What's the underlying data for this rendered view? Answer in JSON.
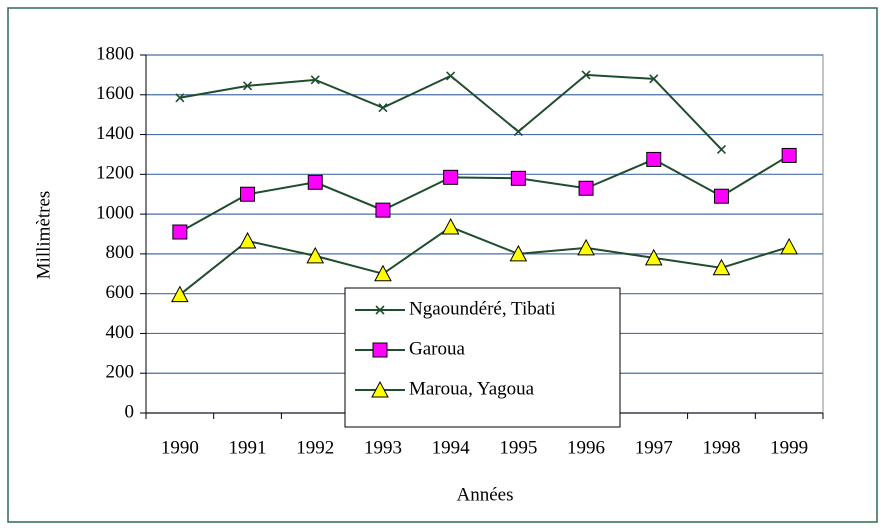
{
  "chart_data": {
    "type": "line",
    "x_label": "Années",
    "y_label": "Millimètres",
    "categories": [
      "1990",
      "1991",
      "1992",
      "1993",
      "1994",
      "1995",
      "1996",
      "1997",
      "1998",
      "1999"
    ],
    "series": [
      {
        "name": "Ngaoundéré, Tibati",
        "color": "#1f4d2e",
        "marker": "x",
        "marker_color": "#1f4d2e",
        "values": [
          1585,
          1645,
          1675,
          1535,
          1695,
          1415,
          1700,
          1680,
          1325,
          null
        ]
      },
      {
        "name": "Garoua",
        "color": "#1f4d2e",
        "marker": "square",
        "marker_color": "#ff00ff",
        "values": [
          910,
          1100,
          1160,
          1020,
          1185,
          1180,
          1130,
          1275,
          1090,
          1295
        ]
      },
      {
        "name": "Maroua, Yagoua",
        "color": "#1f4d2e",
        "marker": "triangle",
        "marker_color": "#ffff00",
        "values": [
          595,
          865,
          790,
          700,
          935,
          800,
          830,
          780,
          730,
          835
        ]
      }
    ],
    "ylim": [
      0,
      1800
    ],
    "yticks": [
      0,
      200,
      400,
      600,
      800,
      1000,
      1200,
      1400,
      1600,
      1800
    ],
    "grid": true,
    "grid_color": "#4a6fa5"
  }
}
